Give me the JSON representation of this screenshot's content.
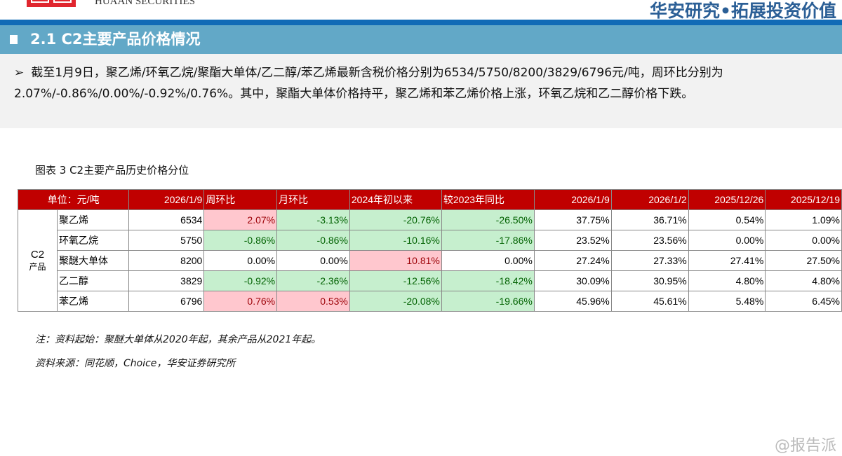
{
  "header": {
    "brand_en": "HUAAN SECURITIES",
    "slogan": "华安研究•拓展投资价值"
  },
  "section": {
    "title": "2.1 C2主要产品价格情况"
  },
  "summary": {
    "text": "截至1月9日，聚乙烯/环氧乙烷/聚酯大单体/乙二醇/苯乙烯最新含税价格分别为6534/5750/8200/3829/6796元/吨，周环比分别为2.07%/-0.86%/0.00%/-0.92%/0.76%。其中，聚酯大单体价格持平，聚乙烯和苯乙烯价格上涨，环氧乙烷和乙二醇价格下跌。"
  },
  "figure": {
    "caption": "图表 3 C2主要产品历史价格分位"
  },
  "table": {
    "headers": [
      "单位：元/吨",
      "2026/1/9",
      "周环比",
      "月环比",
      "2024年初以来",
      "较2023年同比",
      "2026/1/9",
      "2026/1/2",
      "2025/12/26",
      "2025/12/19"
    ],
    "group": "C2",
    "group_sub": "产品",
    "rows": [
      {
        "name": "聚乙烯",
        "cells": [
          "6534",
          "2.07%",
          "-3.13%",
          "-20.76%",
          "-26.50%",
          "37.75%",
          "36.71%",
          "0.54%",
          "1.09%"
        ],
        "status": [
          "",
          "up",
          "down",
          "down",
          "down",
          "",
          "",
          "",
          ""
        ]
      },
      {
        "name": "环氧乙烷",
        "cells": [
          "5750",
          "-0.86%",
          "-0.86%",
          "-10.16%",
          "-17.86%",
          "23.52%",
          "23.56%",
          "0.00%",
          "0.00%"
        ],
        "status": [
          "",
          "down",
          "down",
          "down",
          "down",
          "",
          "",
          "",
          ""
        ]
      },
      {
        "name": "聚醚大单体",
        "cells": [
          "8200",
          "0.00%",
          "0.00%",
          "10.81%",
          "0.00%",
          "27.24%",
          "27.33%",
          "27.41%",
          "27.50%"
        ],
        "status": [
          "",
          "",
          "",
          "up",
          "",
          "",
          "",
          "",
          ""
        ]
      },
      {
        "name": "乙二醇",
        "cells": [
          "3829",
          "-0.92%",
          "-2.36%",
          "-12.56%",
          "-18.42%",
          "30.09%",
          "30.95%",
          "4.80%",
          "4.80%"
        ],
        "status": [
          "",
          "down",
          "down",
          "down",
          "down",
          "",
          "",
          "",
          ""
        ]
      },
      {
        "name": "苯乙烯",
        "cells": [
          "6796",
          "0.76%",
          "0.53%",
          "-20.08%",
          "-19.66%",
          "45.96%",
          "45.61%",
          "5.48%",
          "6.45%"
        ],
        "status": [
          "",
          "up",
          "up",
          "down",
          "down",
          "",
          "",
          "",
          ""
        ]
      }
    ]
  },
  "note": "注：资料起始：聚醚大单体从2020年起，其余产品从2021年起。",
  "source": "资料来源：同花顺，Choice，华安证券研究所",
  "watermark": "@报告派",
  "colors": {
    "header_red": "#c00000",
    "up_fill": "#ffc7ce",
    "down_fill": "#c6efce",
    "banner": "#62a8c7"
  }
}
